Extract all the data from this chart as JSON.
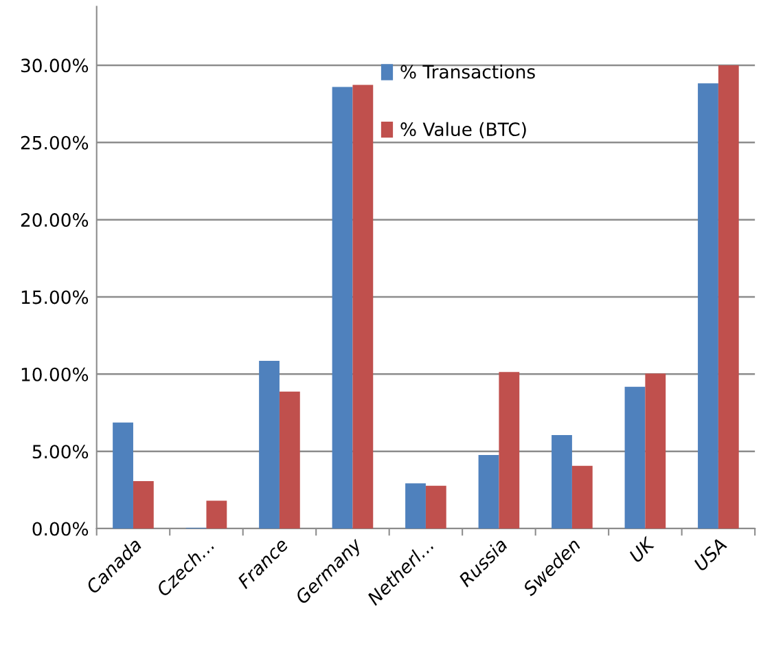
{
  "chart_data": {
    "type": "bar",
    "categories": [
      "Canada",
      "Czech…",
      "France",
      "Germany",
      "Netherl…",
      "Russia",
      "Sweden",
      "UK",
      "USA"
    ],
    "series": [
      {
        "name": "% Transactions",
        "color": "#4f81bd",
        "values": [
          6.87,
          0.05,
          10.86,
          28.59,
          2.93,
          4.77,
          6.05,
          9.18,
          28.83
        ]
      },
      {
        "name": "% Value (BTC)",
        "color": "#c0504d",
        "values": [
          3.07,
          1.8,
          8.87,
          28.73,
          2.77,
          10.14,
          4.06,
          10.04,
          30.0
        ]
      }
    ],
    "ylim": [
      0,
      33.8
    ],
    "yticks": [
      {
        "value": 0,
        "label": "0.00%"
      },
      {
        "value": 5,
        "label": "5.00%"
      },
      {
        "value": 10,
        "label": "10.00%"
      },
      {
        "value": 15,
        "label": "15.00%"
      },
      {
        "value": 20,
        "label": "20.00%"
      },
      {
        "value": 25,
        "label": "25.00%"
      },
      {
        "value": 30,
        "label": "30.00%"
      }
    ],
    "grid": "y",
    "legend": "top"
  }
}
